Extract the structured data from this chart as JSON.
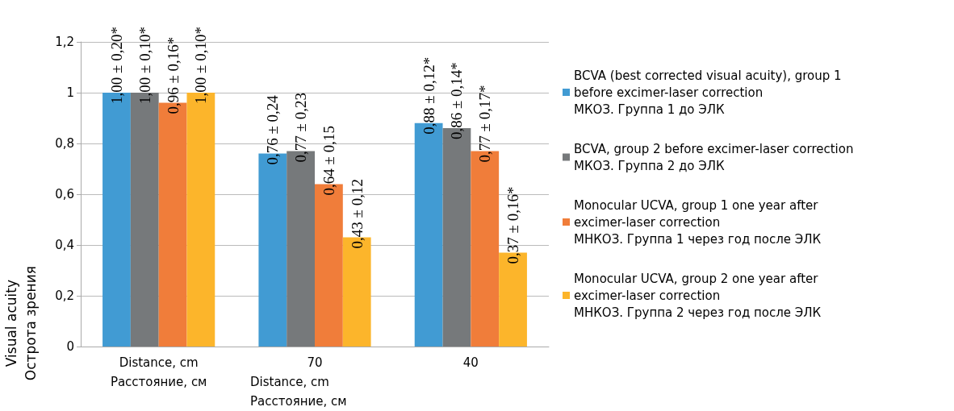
{
  "chart_data": {
    "type": "bar",
    "categories": [
      "Distance, cm\nРасстояние, см",
      "70",
      "40"
    ],
    "xlabel": "Distance, cm\nРасстояние, см",
    "ylabel": "Visual acuity\nОстрота зрения",
    "series": [
      {
        "name": "BCVA (best corrected visual acuity), group 1\nbefore excimer-laser correction\nМКОЗ. Группа 1 до ЭЛК",
        "color": "#419bd3",
        "values": [
          1.0,
          0.76,
          0.88
        ],
        "value_labels": [
          "1,00 ± 0,20*",
          "0,76 ± 0,24",
          "0,88 ± 0,12*"
        ]
      },
      {
        "name": "BCVA, group 2 before excimer-laser correction\nМКОЗ. Группа 2 до ЭЛК",
        "color": "#76797b",
        "values": [
          1.0,
          0.77,
          0.86
        ],
        "value_labels": [
          "1,00 ± 0,10*",
          "0,77 ± 0,23",
          "0,86 ± 0,14*"
        ]
      },
      {
        "name": "Monocular UCVA, group 1 one year after\nexcimer-laser correction\nМНКОЗ. Группа 1 через год после ЭЛК",
        "color": "#f07d3a",
        "values": [
          0.96,
          0.64,
          0.77
        ],
        "value_labels": [
          "0,96 ± 0,16*",
          "0,64 ± 0,15",
          "0,77 ± 0,17*"
        ]
      },
      {
        "name": "Monocular UCVA, group 2 one year after\nexcimer-laser correction\nМНКОЗ. Группа 2 через год после ЭЛК",
        "color": "#fcb52b",
        "values": [
          1.0,
          0.43,
          0.37
        ],
        "value_labels": [
          "1,00 ± 0,10*",
          "0,43 ± 0,12",
          "0,37 ± 0,16*"
        ]
      }
    ],
    "ylim": [
      0,
      1.2
    ],
    "yticks": [
      0,
      {
        "value": 0.2,
        "label": "0,2"
      },
      {
        "value": 0.4,
        "label": "0,4"
      },
      {
        "value": 0.6,
        "label": "0,6"
      },
      {
        "value": 0.8,
        "label": "0,8"
      },
      1,
      {
        "value": 1.2,
        "label": "1,2"
      }
    ],
    "grid": "y",
    "legend": "right"
  }
}
